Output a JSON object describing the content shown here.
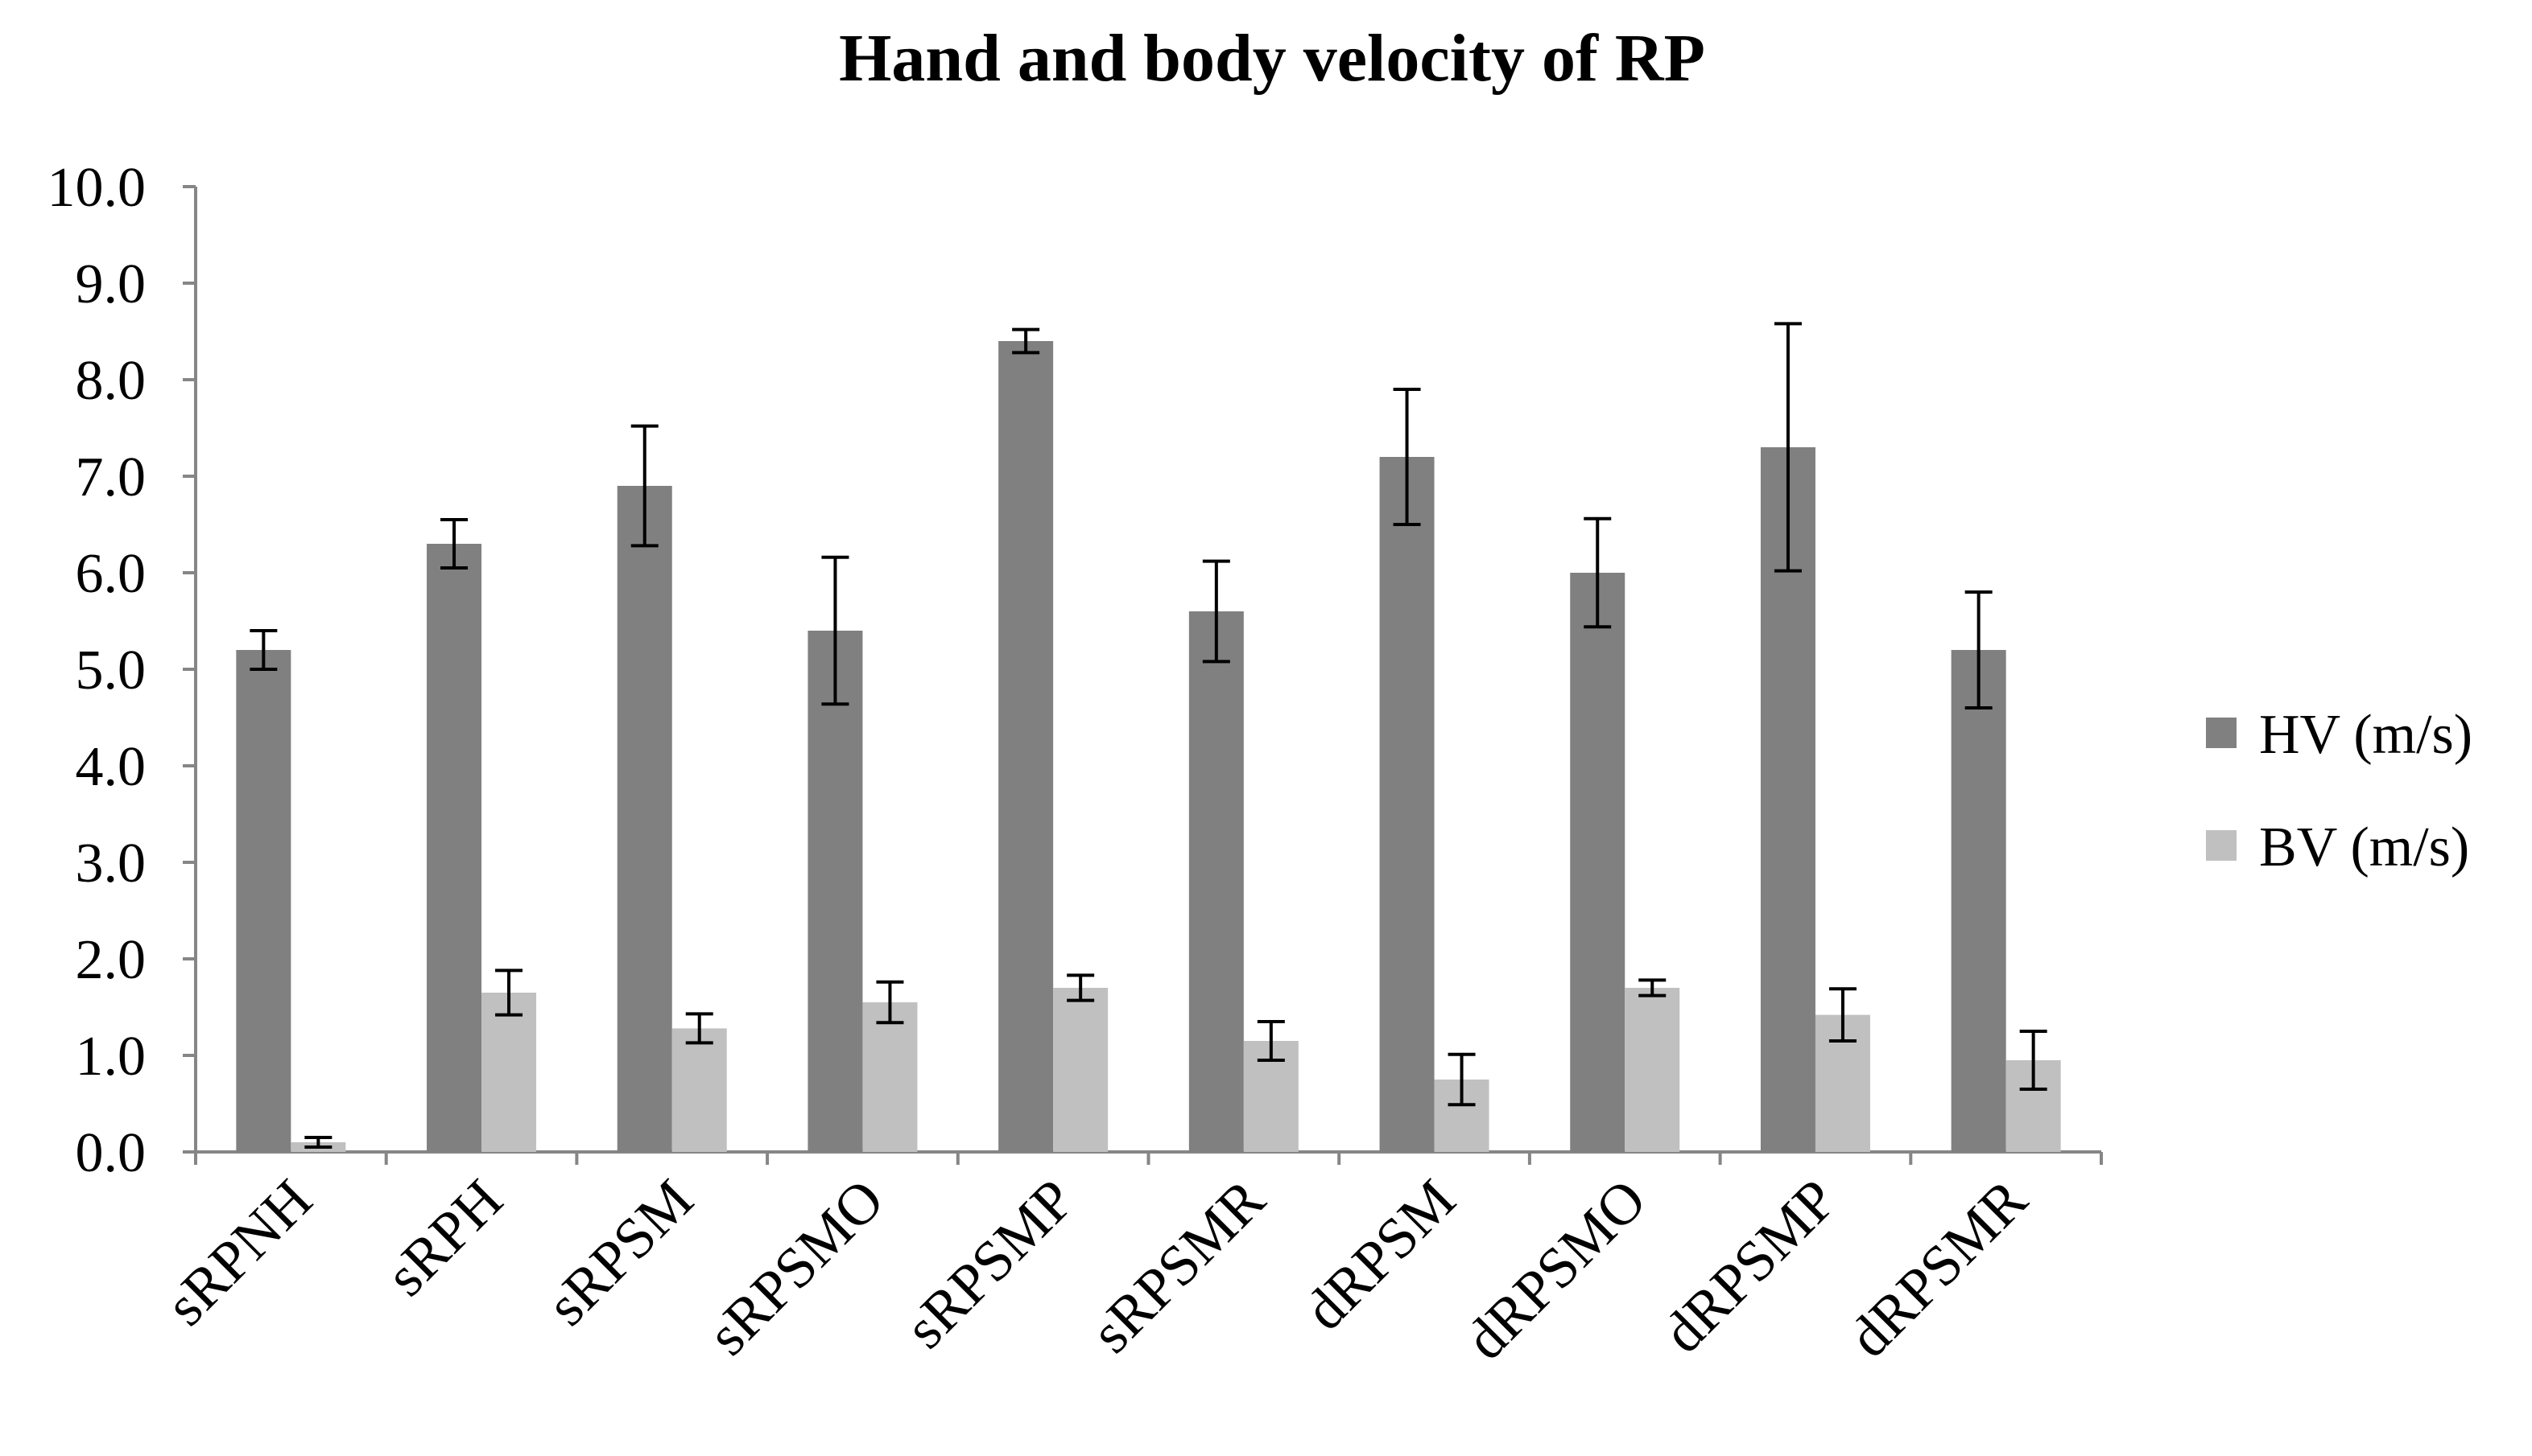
{
  "chart_data": {
    "type": "bar",
    "title": "Hand and body velocity of RP",
    "xlabel": "",
    "ylabel": "",
    "ylim": [
      0,
      10
    ],
    "y_ticks": [
      "0.0",
      "1.0",
      "2.0",
      "3.0",
      "4.0",
      "5.0",
      "6.0",
      "7.0",
      "8.0",
      "9.0",
      "10.0"
    ],
    "categories": [
      "sRPNH",
      "sRPH",
      "sRPSM",
      "sRPSMO",
      "sRPSMP",
      "sRPSMR",
      "dRPSM",
      "dRPSMO",
      "dRPSMP",
      "dRPSMR"
    ],
    "series": [
      {
        "name": "HV (m/s)",
        "color": "#808080",
        "values": [
          5.2,
          6.3,
          6.9,
          5.4,
          8.4,
          5.6,
          7.2,
          6.0,
          7.3,
          5.2
        ],
        "error": [
          0.2,
          0.25,
          0.62,
          0.76,
          0.12,
          0.52,
          0.7,
          0.56,
          1.28,
          0.6
        ]
      },
      {
        "name": "BV (m/s)",
        "color": "#c0c0c0",
        "values": [
          0.1,
          1.65,
          1.28,
          1.55,
          1.7,
          1.15,
          0.75,
          1.7,
          1.42,
          0.95
        ],
        "error": [
          0.05,
          0.23,
          0.15,
          0.21,
          0.13,
          0.2,
          0.26,
          0.08,
          0.27,
          0.3
        ]
      }
    ],
    "legend_position": "right",
    "grid": false
  }
}
